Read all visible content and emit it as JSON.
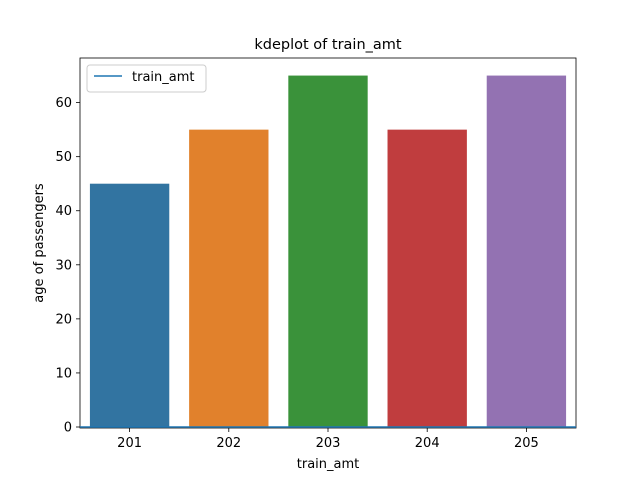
{
  "chart_data": {
    "type": "bar",
    "title": "kdeplot of train_amt",
    "xlabel": "train_amt",
    "ylabel": "age of passengers",
    "categories": [
      "201",
      "202",
      "203",
      "204",
      "205"
    ],
    "values": [
      45,
      55,
      65,
      55,
      65
    ],
    "colors": [
      "#3274a1",
      "#e1812c",
      "#3a923a",
      "#c03d3e",
      "#9372b2"
    ],
    "ylim": [
      0,
      68.25
    ],
    "yticks": [
      0,
      10,
      20,
      30,
      40,
      50,
      60
    ],
    "grid": false,
    "legend": {
      "position": "top-left",
      "entries": [
        {
          "label": "train_amt",
          "color": "#1f77b4",
          "marker": "line"
        }
      ]
    }
  }
}
